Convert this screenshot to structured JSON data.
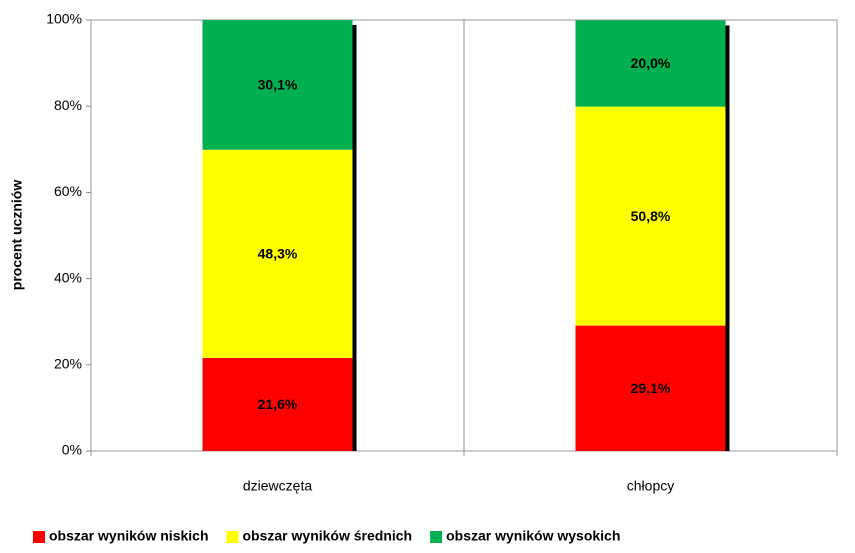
{
  "chart_data": {
    "type": "stacked_bar",
    "y_label": "procent  uczniów",
    "categories": [
      "dziewczęta",
      "chłopcy"
    ],
    "series": [
      {
        "name": "obszar wyników niskich",
        "color": "#ff0000",
        "values": [
          21.6,
          29.1
        ],
        "value_labels": [
          "21,6%",
          "29,1%"
        ]
      },
      {
        "name": "obszar wyników średnich",
        "color": "#ffff00",
        "values": [
          48.3,
          50.8
        ],
        "value_labels": [
          "48,3%",
          "50,8%"
        ]
      },
      {
        "name": "obszar wyników wysokich",
        "color": "#00b050",
        "values": [
          30.1,
          20.0
        ],
        "value_labels": [
          "30,1%",
          "20,0%"
        ]
      }
    ],
    "ylim": [
      0,
      100
    ],
    "yticks": [
      {
        "value": 0,
        "label": "0%"
      },
      {
        "value": 20,
        "label": "20%"
      },
      {
        "value": 40,
        "label": "40%"
      },
      {
        "value": 60,
        "label": "60%"
      },
      {
        "value": 80,
        "label": "80%"
      },
      {
        "value": 100,
        "label": "100%"
      }
    ],
    "legend": "bottom"
  }
}
